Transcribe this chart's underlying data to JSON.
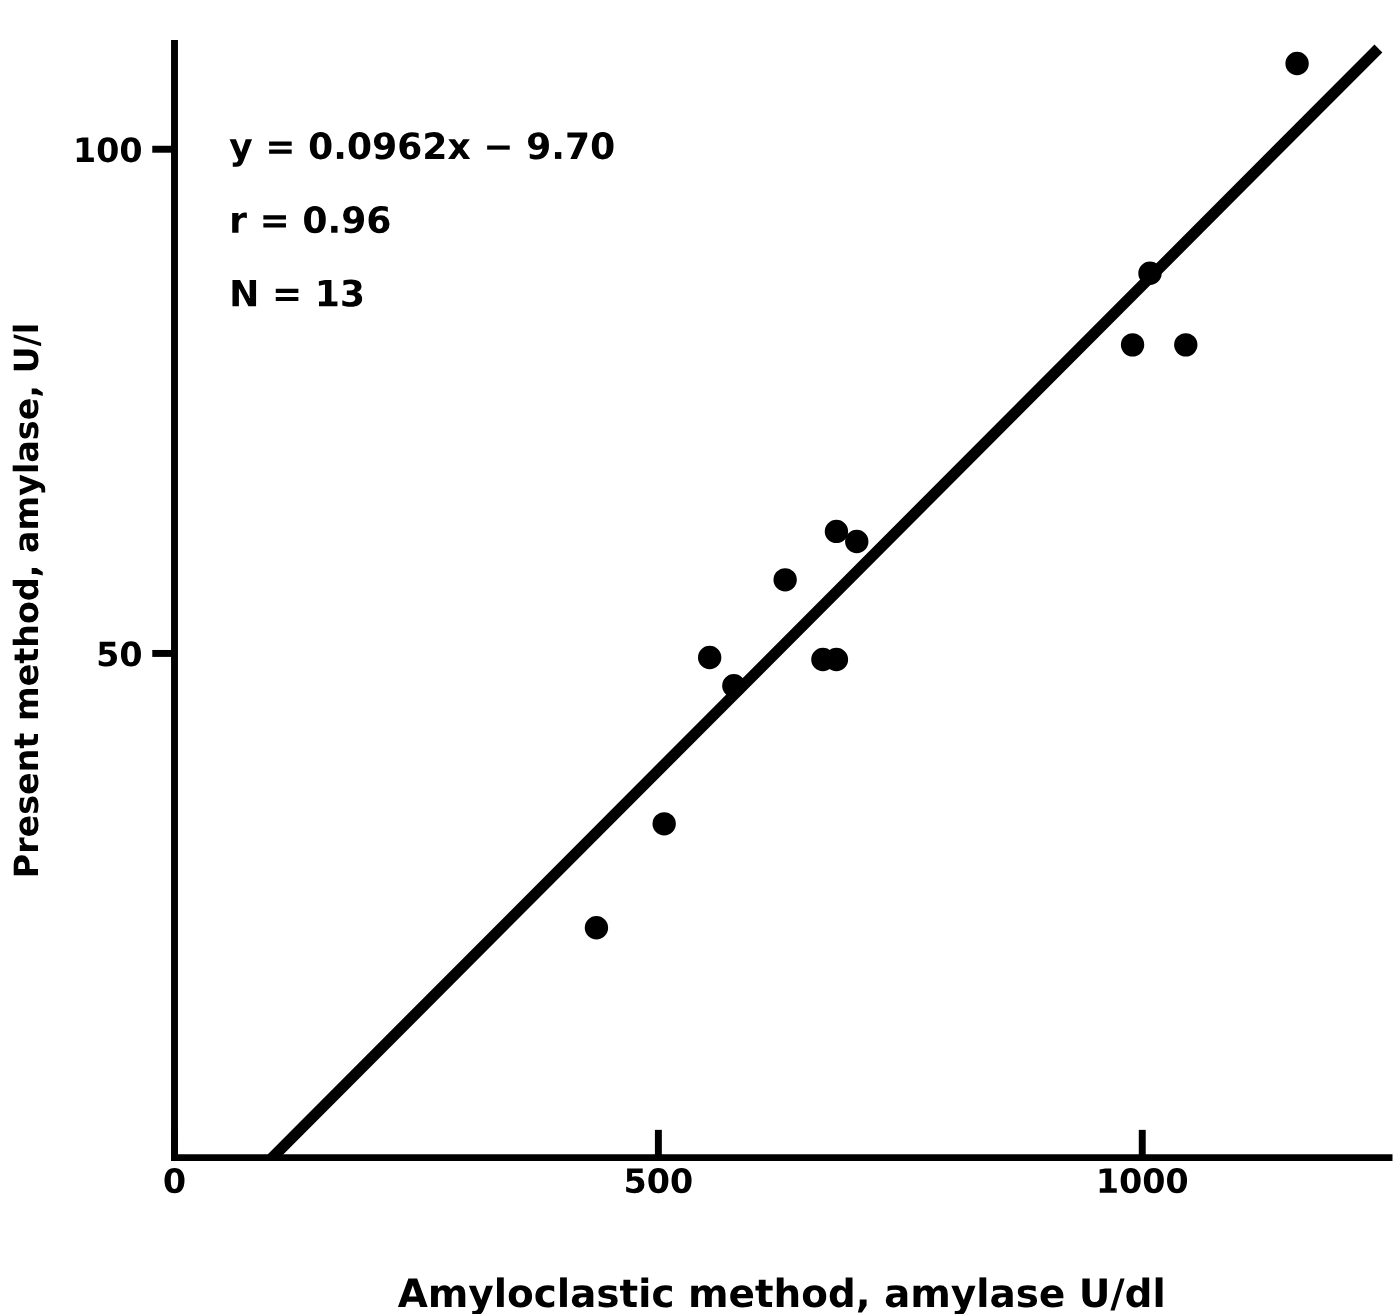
{
  "chart_data": {
    "type": "scatter",
    "xlabel": "Amyloclastic method, amylase U/dl",
    "ylabel": "Present method, amylase, U/l",
    "xlim": [
      0,
      1255
    ],
    "ylim": [
      0,
      110.5
    ],
    "xticks": [
      0,
      500,
      1000
    ],
    "yticks": [
      50,
      100
    ],
    "grid": false,
    "marker": "circle",
    "annotations": [
      "y = 0.0962x − 9.70",
      "r = 0.96",
      "N = 13"
    ],
    "series": [
      {
        "color": "#000000",
        "x": [
          436,
          506,
          553,
          578,
          631,
          670,
          684,
          684,
          705,
          990,
          1008,
          1045,
          1160
        ],
        "values": [
          22.8,
          33.1,
          49.6,
          46.8,
          57.3,
          49.4,
          49.4,
          62.1,
          61.1,
          80.6,
          87.7,
          80.6,
          108.5
        ]
      },
      {
        "type": "line",
        "color": "#000000",
        "marker": "none",
        "line_style": "solid",
        "x": [
          101,
          1240
        ],
        "values": [
          0,
          109.6
        ]
      }
    ]
  }
}
